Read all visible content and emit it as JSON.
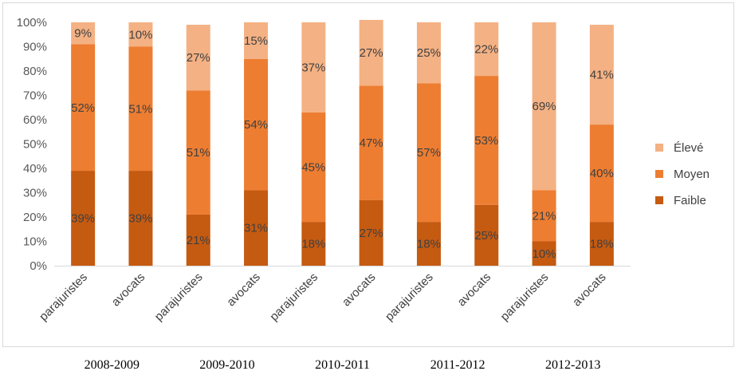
{
  "chart_data": {
    "type": "bar",
    "stacked": true,
    "percent": true,
    "categories": [
      "parajuristes",
      "avocats",
      "parajuristes",
      "avocats",
      "parajuristes",
      "avocats",
      "parajuristes",
      "avocats",
      "parajuristes",
      "avocats"
    ],
    "groups": [
      "2008-2009",
      "2009-2010",
      "2010-2011",
      "2011-2012",
      "2012-2013"
    ],
    "series": [
      {
        "name": "Faible",
        "color": "#c55a11",
        "values": [
          39,
          39,
          21,
          31,
          18,
          27,
          18,
          25,
          10,
          18
        ]
      },
      {
        "name": "Moyen",
        "color": "#ed7d31",
        "values": [
          52,
          51,
          51,
          54,
          45,
          47,
          57,
          53,
          21,
          40
        ]
      },
      {
        "name": "Élevé",
        "color": "#f4b183",
        "values": [
          9,
          10,
          27,
          15,
          37,
          27,
          25,
          22,
          69,
          41
        ]
      }
    ],
    "yticks": [
      "0%",
      "10%",
      "20%",
      "30%",
      "40%",
      "50%",
      "60%",
      "70%",
      "80%",
      "90%",
      "100%"
    ],
    "ylim": [
      0,
      100
    ],
    "legend_position": "right",
    "grid": false
  }
}
